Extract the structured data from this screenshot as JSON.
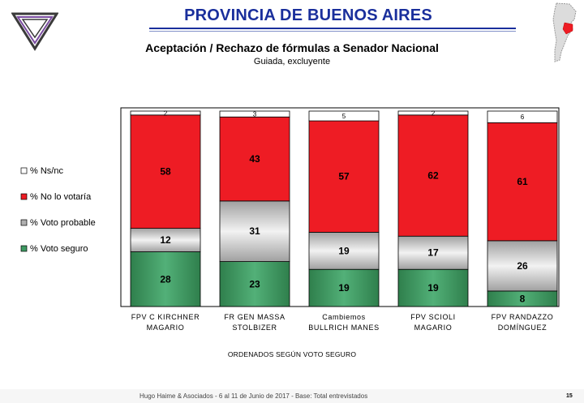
{
  "header": {
    "title": "PROVINCIA DE BUENOS AIRES",
    "subtitle": "Aceptación / Rechazo de fórmulas a Senador Nacional",
    "subsubtitle": "Guiada, excluyente"
  },
  "chart_data": {
    "type": "bar",
    "stacked": true,
    "normalized": true,
    "categories": [
      [
        "FPV C KIRCHNER",
        "MAGARIO"
      ],
      [
        "FR GEN MASSA",
        "STOLBIZER"
      ],
      [
        "Cambiemos",
        "BULLRICH MANES"
      ],
      [
        "FPV SCIOLI",
        "MAGARIO"
      ],
      [
        "FPV RANDAZZO",
        "DOMÍNGUEZ"
      ]
    ],
    "series": [
      {
        "name": "% Voto seguro",
        "color": "#3e9a62",
        "values": [
          28,
          23,
          19,
          19,
          8
        ]
      },
      {
        "name": "% Voto probable",
        "color": "#b0b0b0",
        "values": [
          12,
          31,
          19,
          17,
          26
        ]
      },
      {
        "name": "% No lo votaría",
        "color": "#ee1c24",
        "values": [
          58,
          43,
          57,
          62,
          61
        ]
      },
      {
        "name": "% Ns/nc",
        "color": "#ffffff",
        "values": [
          2,
          3,
          5,
          2,
          6
        ]
      }
    ],
    "ylim": [
      0,
      100
    ],
    "legend_position": "left",
    "grid": false
  },
  "note": "ORDENADOS SEGÚN VOTO SEGURO",
  "footer": {
    "text": "Hugo Haime & Asociados   -   6 al 11 de Junio de 2017   -   Base: Total entrevistados",
    "page": "15"
  }
}
